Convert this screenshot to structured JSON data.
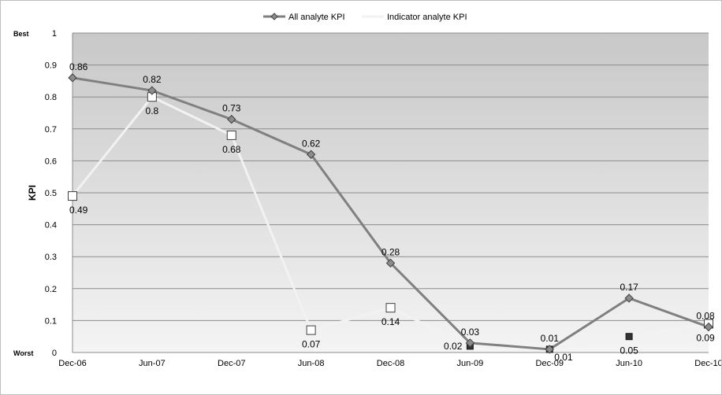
{
  "chart_data": {
    "type": "line",
    "title": "",
    "xlabel": "",
    "ylabel": "KPI",
    "ylim": [
      0,
      1
    ],
    "yticks": [
      "0",
      "0.1",
      "0.2",
      "0.3",
      "0.4",
      "0.5",
      "0.6",
      "0.7",
      "0.8",
      "0.9",
      "1"
    ],
    "y_end_labels": {
      "top": "Best",
      "bottom": "Worst"
    },
    "grid": true,
    "legend_position": "top",
    "categories": [
      "Dec-06",
      "Jun-07",
      "Dec-07",
      "Jun-08",
      "Dec-08",
      "Jun-09",
      "Dec-09",
      "Jun-10",
      "Dec-10"
    ],
    "series": [
      {
        "name": "All analyte KPI",
        "color": "#808080",
        "marker": "diamond",
        "values": [
          0.86,
          0.82,
          0.73,
          0.62,
          0.28,
          0.03,
          0.01,
          0.17,
          0.08
        ],
        "labels": [
          "0.86",
          "0.82",
          "0.73",
          "0.62",
          "0.28",
          "0.03",
          "0.01",
          "0.17",
          "0.08"
        ]
      },
      {
        "name": "Indicator analyte KPI",
        "color": "#f2f2f2",
        "marker": "square",
        "values": [
          0.49,
          0.8,
          0.68,
          0.07,
          0.14,
          0.02,
          0.01,
          0.05,
          0.09
        ],
        "labels": [
          "0.49",
          "0.8",
          "0.68",
          "0.07",
          "0.14",
          "0.02",
          "0.01",
          "0.05",
          "0.09"
        ],
        "dark_markers_at": [
          5,
          6,
          7
        ]
      }
    ]
  }
}
